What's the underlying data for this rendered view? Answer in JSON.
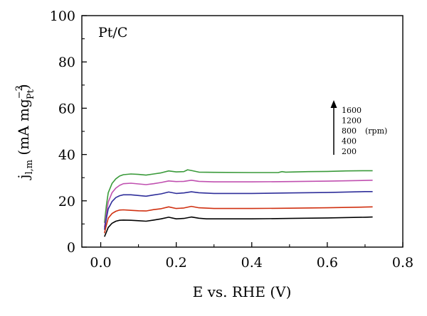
{
  "chart_data": {
    "type": "line",
    "panel_label": "Pt/C",
    "xlabel": "E vs. RHE (V)",
    "ylabel": {
      "main": "j",
      "sub": "l,m",
      "unit_open": " (mA mg",
      "unit_sup": "−2",
      "unit_sub": "Pt",
      "unit_close": ")"
    },
    "xlim": [
      -0.05,
      0.8
    ],
    "ylim": [
      0,
      100
    ],
    "xticks": [
      0.0,
      0.2,
      0.4,
      0.6,
      0.8
    ],
    "xtick_labels": [
      "0.0",
      "0.2",
      "0.4",
      "0.6",
      "0.8"
    ],
    "yticks": [
      0,
      20,
      40,
      60,
      80,
      100
    ],
    "ytick_labels": [
      "0",
      "20",
      "40",
      "60",
      "80",
      "100"
    ],
    "grid": false,
    "legend": {
      "placement": "right",
      "direction": "increasing upward",
      "entries": [
        "1600",
        "1200",
        "800",
        "400",
        "200"
      ],
      "unit": "(rpm)"
    },
    "series": [
      {
        "name": "1600",
        "color": "#3a9a3a",
        "points": [
          [
            0.01,
            10.5
          ],
          [
            0.015,
            18
          ],
          [
            0.02,
            23.5
          ],
          [
            0.03,
            27.5
          ],
          [
            0.04,
            29.5
          ],
          [
            0.05,
            30.7
          ],
          [
            0.06,
            31.3
          ],
          [
            0.08,
            31.6
          ],
          [
            0.1,
            31.4
          ],
          [
            0.12,
            31.1
          ],
          [
            0.14,
            31.6
          ],
          [
            0.16,
            32.1
          ],
          [
            0.18,
            32.9
          ],
          [
            0.2,
            32.5
          ],
          [
            0.22,
            32.6
          ],
          [
            0.23,
            33.4
          ],
          [
            0.24,
            33.1
          ],
          [
            0.26,
            32.4
          ],
          [
            0.3,
            32.3
          ],
          [
            0.4,
            32.2
          ],
          [
            0.47,
            32.2
          ],
          [
            0.48,
            32.6
          ],
          [
            0.49,
            32.4
          ],
          [
            0.55,
            32.6
          ],
          [
            0.6,
            32.7
          ],
          [
            0.65,
            32.9
          ],
          [
            0.7,
            33.0
          ],
          [
            0.72,
            33.0
          ]
        ]
      },
      {
        "name": "1200",
        "color": "#c050b0",
        "points": [
          [
            0.01,
            8.5
          ],
          [
            0.015,
            14.5
          ],
          [
            0.02,
            19.5
          ],
          [
            0.03,
            23.5
          ],
          [
            0.04,
            25.5
          ],
          [
            0.05,
            26.7
          ],
          [
            0.06,
            27.4
          ],
          [
            0.08,
            27.6
          ],
          [
            0.1,
            27.3
          ],
          [
            0.12,
            27.0
          ],
          [
            0.14,
            27.4
          ],
          [
            0.16,
            27.9
          ],
          [
            0.18,
            28.6
          ],
          [
            0.2,
            28.3
          ],
          [
            0.22,
            28.4
          ],
          [
            0.24,
            28.9
          ],
          [
            0.26,
            28.4
          ],
          [
            0.3,
            28.2
          ],
          [
            0.4,
            28.2
          ],
          [
            0.5,
            28.3
          ],
          [
            0.6,
            28.5
          ],
          [
            0.7,
            28.8
          ],
          [
            0.72,
            28.9
          ]
        ]
      },
      {
        "name": "800",
        "color": "#2e2e9a",
        "points": [
          [
            0.01,
            7.5
          ],
          [
            0.015,
            12.5
          ],
          [
            0.02,
            16.5
          ],
          [
            0.03,
            19.7
          ],
          [
            0.04,
            21.4
          ],
          [
            0.05,
            22.2
          ],
          [
            0.06,
            22.6
          ],
          [
            0.08,
            22.6
          ],
          [
            0.1,
            22.3
          ],
          [
            0.12,
            22.0
          ],
          [
            0.14,
            22.5
          ],
          [
            0.16,
            23.0
          ],
          [
            0.18,
            23.8
          ],
          [
            0.2,
            23.2
          ],
          [
            0.22,
            23.4
          ],
          [
            0.24,
            23.9
          ],
          [
            0.26,
            23.5
          ],
          [
            0.3,
            23.2
          ],
          [
            0.4,
            23.2
          ],
          [
            0.5,
            23.4
          ],
          [
            0.6,
            23.6
          ],
          [
            0.7,
            24.0
          ],
          [
            0.72,
            24.0
          ]
        ]
      },
      {
        "name": "400",
        "color": "#d03010",
        "points": [
          [
            0.01,
            6.0
          ],
          [
            0.015,
            9.5
          ],
          [
            0.02,
            12.5
          ],
          [
            0.03,
            14.5
          ],
          [
            0.04,
            15.5
          ],
          [
            0.05,
            16.0
          ],
          [
            0.06,
            16.1
          ],
          [
            0.08,
            15.9
          ],
          [
            0.1,
            15.7
          ],
          [
            0.12,
            15.6
          ],
          [
            0.14,
            16.2
          ],
          [
            0.16,
            16.6
          ],
          [
            0.18,
            17.4
          ],
          [
            0.2,
            16.7
          ],
          [
            0.22,
            16.9
          ],
          [
            0.24,
            17.6
          ],
          [
            0.26,
            17.0
          ],
          [
            0.3,
            16.7
          ],
          [
            0.4,
            16.7
          ],
          [
            0.5,
            16.8
          ],
          [
            0.6,
            17.0
          ],
          [
            0.7,
            17.3
          ],
          [
            0.72,
            17.4
          ]
        ]
      },
      {
        "name": "200",
        "color": "#000000",
        "points": [
          [
            0.01,
            4.5
          ],
          [
            0.015,
            6.5
          ],
          [
            0.02,
            8.5
          ],
          [
            0.03,
            10.3
          ],
          [
            0.04,
            11.2
          ],
          [
            0.05,
            11.6
          ],
          [
            0.06,
            11.7
          ],
          [
            0.08,
            11.6
          ],
          [
            0.1,
            11.4
          ],
          [
            0.12,
            11.2
          ],
          [
            0.14,
            11.7
          ],
          [
            0.16,
            12.2
          ],
          [
            0.18,
            12.9
          ],
          [
            0.2,
            12.2
          ],
          [
            0.22,
            12.4
          ],
          [
            0.24,
            13.0
          ],
          [
            0.26,
            12.5
          ],
          [
            0.28,
            12.2
          ],
          [
            0.3,
            12.2
          ],
          [
            0.4,
            12.2
          ],
          [
            0.5,
            12.4
          ],
          [
            0.6,
            12.6
          ],
          [
            0.7,
            12.9
          ],
          [
            0.72,
            13.0
          ]
        ]
      }
    ]
  }
}
